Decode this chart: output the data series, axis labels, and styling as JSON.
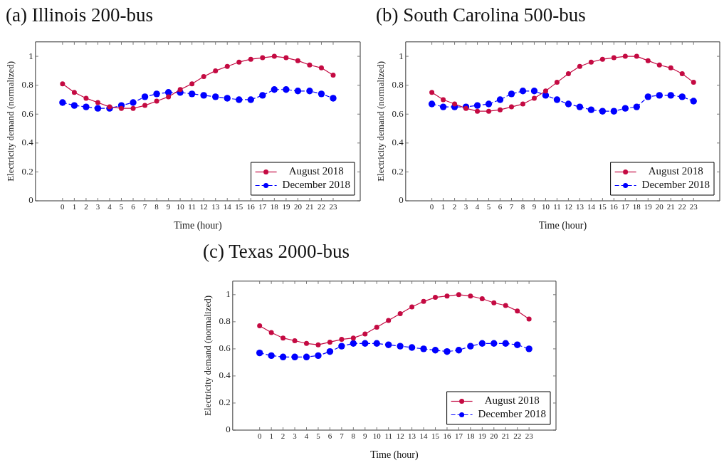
{
  "chart_data": [
    {
      "type": "line",
      "title": "(a) Illinois 200-bus",
      "xlabel": "Time (hour)",
      "ylabel": "Electricity demand (normalized)",
      "x": [
        0,
        1,
        2,
        3,
        4,
        5,
        6,
        7,
        8,
        9,
        10,
        11,
        12,
        13,
        14,
        15,
        16,
        17,
        18,
        19,
        20,
        21,
        22,
        23
      ],
      "xlim": [
        -2.3,
        25.3
      ],
      "xticks": [
        0,
        1,
        2,
        3,
        4,
        5,
        6,
        7,
        8,
        9,
        10,
        11,
        12,
        13,
        14,
        15,
        16,
        17,
        18,
        19,
        20,
        21,
        22,
        23
      ],
      "ylim": [
        0,
        1.1
      ],
      "yticks": [
        0,
        0.2,
        0.4,
        0.6,
        0.8,
        1
      ],
      "legend": "bottom right",
      "marker": "circle",
      "series": [
        {
          "name": "August 2018",
          "color": "#c40a42",
          "line_style": "solid",
          "values": [
            0.81,
            0.75,
            0.71,
            0.68,
            0.65,
            0.64,
            0.64,
            0.66,
            0.69,
            0.72,
            0.77,
            0.81,
            0.86,
            0.9,
            0.93,
            0.96,
            0.98,
            0.99,
            1.0,
            0.99,
            0.97,
            0.94,
            0.92,
            0.87
          ]
        },
        {
          "name": "December 2018",
          "color": "#0000ff",
          "line_style": "dashed",
          "values": [
            0.68,
            0.66,
            0.65,
            0.64,
            0.64,
            0.66,
            0.68,
            0.72,
            0.74,
            0.75,
            0.75,
            0.74,
            0.73,
            0.72,
            0.71,
            0.7,
            0.7,
            0.73,
            0.77,
            0.77,
            0.76,
            0.76,
            0.74,
            0.71
          ]
        }
      ]
    },
    {
      "type": "line",
      "title": "(b) South Carolina 500-bus",
      "xlabel": "Time (hour)",
      "ylabel": "Electricity demand (normalized)",
      "x": [
        0,
        1,
        2,
        3,
        4,
        5,
        6,
        7,
        8,
        9,
        10,
        11,
        12,
        13,
        14,
        15,
        16,
        17,
        18,
        19,
        20,
        21,
        22,
        23
      ],
      "xlim": [
        -2.3,
        25.3
      ],
      "xticks": [
        0,
        1,
        2,
        3,
        4,
        5,
        6,
        7,
        8,
        9,
        10,
        11,
        12,
        13,
        14,
        15,
        16,
        17,
        18,
        19,
        20,
        21,
        22,
        23
      ],
      "ylim": [
        0,
        1.1
      ],
      "yticks": [
        0,
        0.2,
        0.4,
        0.6,
        0.8,
        1
      ],
      "legend": "bottom right",
      "marker": "circle",
      "series": [
        {
          "name": "August 2018",
          "color": "#c40a42",
          "line_style": "solid",
          "values": [
            0.75,
            0.7,
            0.67,
            0.64,
            0.62,
            0.62,
            0.63,
            0.65,
            0.67,
            0.71,
            0.76,
            0.82,
            0.88,
            0.93,
            0.96,
            0.98,
            0.99,
            1.0,
            1.0,
            0.97,
            0.94,
            0.92,
            0.88,
            0.82
          ]
        },
        {
          "name": "December 2018",
          "color": "#0000ff",
          "line_style": "dashed",
          "values": [
            0.67,
            0.65,
            0.65,
            0.65,
            0.66,
            0.67,
            0.7,
            0.74,
            0.76,
            0.76,
            0.73,
            0.7,
            0.67,
            0.65,
            0.63,
            0.62,
            0.62,
            0.64,
            0.65,
            0.72,
            0.73,
            0.73,
            0.72,
            0.69
          ]
        }
      ]
    },
    {
      "type": "line",
      "title": "(c) Texas 2000-bus",
      "xlabel": "Time (hour)",
      "ylabel": "Electricity demand (normalized)",
      "x": [
        0,
        1,
        2,
        3,
        4,
        5,
        6,
        7,
        8,
        9,
        10,
        11,
        12,
        13,
        14,
        15,
        16,
        17,
        18,
        19,
        20,
        21,
        22,
        23
      ],
      "xlim": [
        -2.3,
        25.3
      ],
      "xticks": [
        0,
        1,
        2,
        3,
        4,
        5,
        6,
        7,
        8,
        9,
        10,
        11,
        12,
        13,
        14,
        15,
        16,
        17,
        18,
        19,
        20,
        21,
        22,
        23
      ],
      "ylim": [
        0,
        1.1
      ],
      "yticks": [
        0,
        0.2,
        0.4,
        0.6,
        0.8,
        1
      ],
      "legend": "bottom right",
      "marker": "circle",
      "series": [
        {
          "name": "August 2018",
          "color": "#c40a42",
          "line_style": "solid",
          "values": [
            0.77,
            0.72,
            0.68,
            0.66,
            0.64,
            0.63,
            0.65,
            0.67,
            0.68,
            0.71,
            0.76,
            0.81,
            0.86,
            0.91,
            0.95,
            0.98,
            0.99,
            1.0,
            0.99,
            0.97,
            0.94,
            0.92,
            0.88,
            0.82
          ]
        },
        {
          "name": "December 2018",
          "color": "#0000ff",
          "line_style": "dashed",
          "values": [
            0.57,
            0.55,
            0.54,
            0.54,
            0.54,
            0.55,
            0.58,
            0.62,
            0.64,
            0.64,
            0.64,
            0.63,
            0.62,
            0.61,
            0.6,
            0.59,
            0.58,
            0.59,
            0.62,
            0.64,
            0.64,
            0.64,
            0.63,
            0.6
          ]
        }
      ]
    }
  ]
}
